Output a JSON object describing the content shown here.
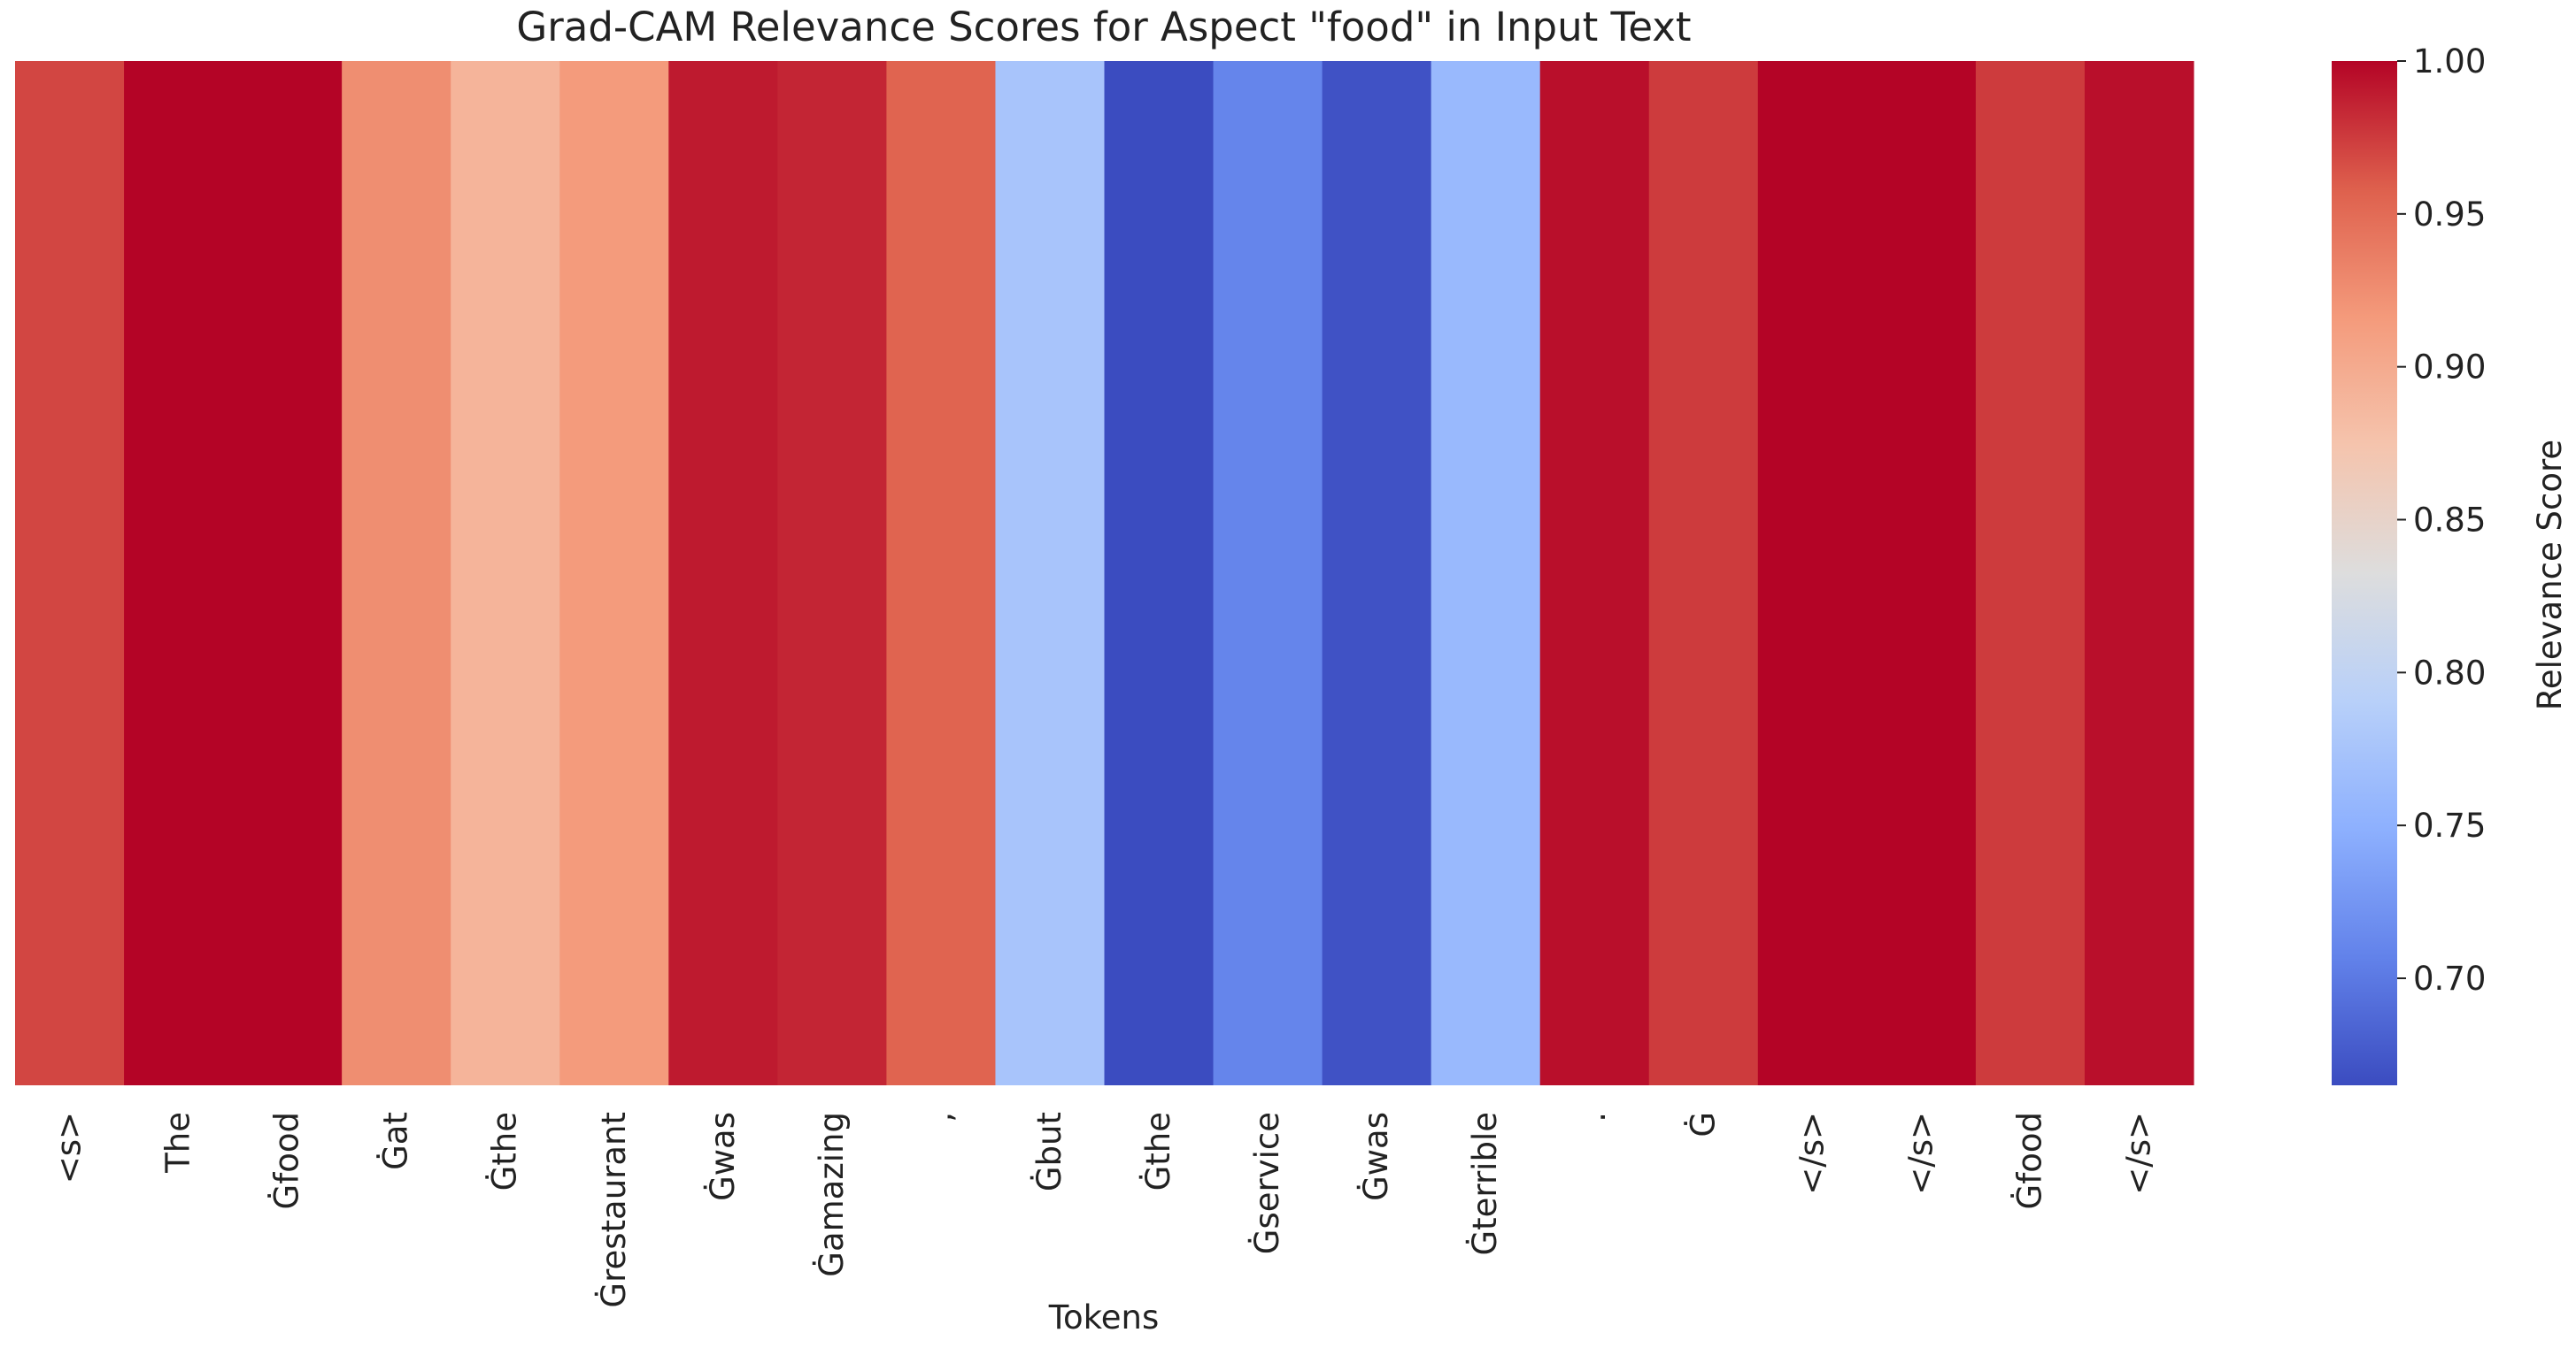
{
  "chart_data": {
    "type": "heatmap",
    "title": "Grad-CAM Relevance Scores for Aspect \"food\" in Input Text",
    "xlabel": "Tokens",
    "colorbar_label": "Relevance Score",
    "colormap": "coolwarm",
    "categories": [
      "<s>",
      "The",
      "Ġfood",
      "Ġat",
      "Ġthe",
      "Ġrestaurant",
      "Ġwas",
      "Ġamazing",
      ",",
      "Ġbut",
      "Ġthe",
      "Ġservice",
      "Ġwas",
      "Ġterrible",
      ".",
      "Ġ",
      "</s>",
      "</s>",
      "Ġfood",
      "</s>"
    ],
    "values": [
      0.97,
      1.0,
      1.0,
      0.925,
      0.89,
      0.915,
      0.99,
      0.985,
      0.955,
      0.775,
      0.665,
      0.71,
      0.67,
      0.76,
      0.995,
      0.975,
      1.0,
      1.0,
      0.975,
      0.995
    ],
    "clim": [
      0.665,
      1.0
    ],
    "cticks": [
      {
        "value": 0.7,
        "label": "0.70"
      },
      {
        "value": 0.75,
        "label": "0.75"
      },
      {
        "value": 0.8,
        "label": "0.80"
      },
      {
        "value": 0.85,
        "label": "0.85"
      },
      {
        "value": 0.9,
        "label": "0.90"
      },
      {
        "value": 0.95,
        "label": "0.95"
      },
      {
        "value": 1.0,
        "label": "1.00"
      }
    ]
  }
}
